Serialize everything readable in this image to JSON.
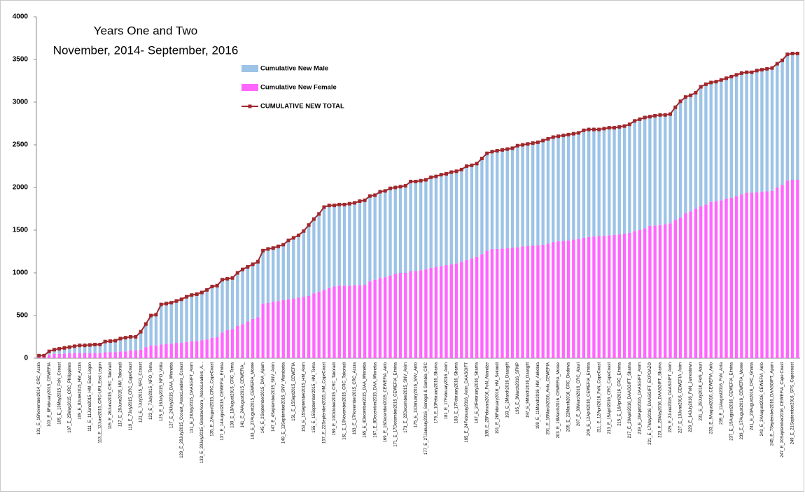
{
  "chart_data": {
    "type": "bar",
    "title": "Years  One and Two",
    "subtitle": "November, 2014- September, 2016",
    "categories": [
      "101_E_16November2014_CRC_Accra",
      null,
      "103_E_8February2015_CEWEFIA",
      null,
      "105_E_13May2015_FoN_Ccoast",
      null,
      "107_E_25May2015_CRC_Philippines",
      null,
      "109_E_8June2015_HM_Accra",
      null,
      "111_E_11June2015_HM_East Legon",
      null,
      "113_E_12June2015_CRC-URI_East Legon",
      null,
      "115_E_26June2015_CRC_Takoradi",
      null,
      "117_E_29June2015_HM_Takoradi",
      null,
      "119_E_7July2015_CRC_CapeCoast",
      null,
      "121_E_7July2015_NFO_Ccoast",
      null,
      "123_E_7July2015_NFO_Tema",
      null,
      "125_E_16July2015_NFO_Volta",
      null,
      "127_E_24July2015_DAA_Winneba",
      null,
      "129_E_28July2015_Ccoast_AssocLeaders_Ccoast",
      null,
      "131_E_28July2015_DAASGIFT_Axim",
      null,
      "133_E_29July2015_GreaterAccra_AssocLeaders_A...",
      null,
      "135_E_2August2015_CRC_CapeCoast",
      null,
      "137_E_14August2015_CEWEFIA_Elmina",
      null,
      "139_E_18August2015_CRC_Tema",
      null,
      "141_E_24August2015_CEWEFIA_",
      null,
      "143_E_27August2015_CEWEFIA_Moree",
      null,
      "145_E_2September2015_DAA_Apam",
      null,
      "147_E_4September2015_SNV_Axim",
      null,
      "149_E_11September2015_SNV_Warabeba",
      null,
      "151_E_15Sept2015_CEWEFIA",
      null,
      "153_E_15September2015_HM_Axim",
      null,
      "155_E_15September2015_HM_Tema",
      null,
      "157_E_22September2015_HM_CapeCoast",
      null,
      "159_E_19October2015_CRC_Takoradi",
      null,
      "161_E_10November2015_CRC_Takoradi",
      null,
      "163_E_17November2015_CRC_Accra",
      null,
      "165_E_4December2015_DAA_Winneba",
      null,
      "167_E_8December2015_DAA_Winneba",
      null,
      "169_E_16December2015_CEWEFIA_Anlo",
      null,
      "171_E_17December2015_CEWEFIA_Elmina",
      null,
      "173_E_22December2015_SNV_Axim",
      null,
      "175_E_13January2016_SNV_Anlo",
      null,
      "177_E_27January2016_Senegal & Gambia_CRC",
      null,
      "179_E_10February2016_Shama",
      null,
      "181_E_17February2016_Axim",
      null,
      "183_E_17February2016_Shama",
      null,
      "185_E_24February2016_Axim_DAASGIFT",
      null,
      "187_E_24February2016_Shama",
      null,
      "189_E_25February2016_FoN_Abandze",
      null,
      "191_E_26February2016_HM_Sekondi",
      null,
      "193_E_2March2016_Daasgift",
      null,
      "195_E_3March2016_SFMP",
      null,
      "197_E_9March2016_Daasgift",
      null,
      "199_E_11March2016_HM_Ankobra",
      null,
      "201_E_16March2016_Anlo_CEWEFIA",
      null,
      "203_E_18March2016_CEWEFIA_Moree",
      null,
      "205_E_22March2016_CRC_Dodowa",
      null,
      "207_E_30March2016_CRC_Aburi",
      null,
      "209_E_12April2016_CEWEFIA_Elmina",
      null,
      "211_E_12April2016_FoN_CapeCoast",
      null,
      "213_E_15April2016_CRC_CapeCoast",
      null,
      "215_E_16April2016_CRC_Elmina",
      null,
      "217_E_20April2016_DAASGIFT_Shama",
      null,
      "219_E_28April2016_DAASGIFT_Axim",
      null,
      "221_E_17May2016_DAASGIFT_EXPOAZO",
      null,
      "223_E_25May2016_DAASGIFT_Shama",
      null,
      "225_E_2June2016_DAASGIFT_Axim",
      null,
      "227_E_10June2016_CEWEFIA_Axim",
      null,
      "229_E_14July2016_FoN_Jamestown",
      null,
      "231_E_29July2016_FoN_Aburi",
      null,
      "233_E_9August2016_CEWEFIA_Anlo",
      null,
      "235_E_11August2016_FoN_Axta",
      null,
      "237_E_15August2016_CEWEFIA_Elmina",
      null,
      "239_E_17August2016_CEWEFIA_Moree",
      null,
      "241_E_23August2016_CRC_Ghana",
      null,
      "243_E_24August2016_CEWEFIA_Anlo",
      null,
      "245_E_7September2016_DAASGIFT_Apam",
      null,
      "247_E_20September2016_CEWEFIA_Cape Coast",
      null,
      "249_E_21September2016_SPS_Capecoast",
      null
    ],
    "series": [
      {
        "name": "Cumulative New Male",
        "kind": "bar",
        "color": "#9dc3e6",
        "values": [
          10,
          10,
          40,
          50,
          60,
          65,
          70,
          80,
          90,
          90,
          95,
          100,
          100,
          125,
          130,
          135,
          150,
          160,
          160,
          160,
          210,
          270,
          350,
          360,
          470,
          470,
          480,
          490,
          510,
          530,
          540,
          550,
          560,
          580,
          600,
          600,
          620,
          600,
          600,
          620,
          640,
          640,
          640,
          650,
          620,
          630,
          630,
          640,
          650,
          690,
          710,
          730,
          770,
          830,
          870,
          910,
          970,
          970,
          950,
          950,
          950,
          960,
          965,
          985,
          990,
          1000,
          990,
          1010,
          1010,
          1020,
          1010,
          1010,
          1020,
          1050,
          1050,
          1050,
          1050,
          1060,
          1060,
          1070,
          1070,
          1080,
          1080,
          1080,
          1100,
          1090,
          1090,
          1120,
          1140,
          1140,
          1150,
          1155,
          1160,
          1165,
          1190,
          1190,
          1195,
          1200,
          1205,
          1220,
          1230,
          1230,
          1230,
          1235,
          1240,
          1240,
          1240,
          1260,
          1260,
          1255,
          1250,
          1255,
          1260,
          1255,
          1260,
          1260,
          1270,
          1290,
          1300,
          1300,
          1280,
          1285,
          1290,
          1280,
          1280,
          1320,
          1360,
          1360,
          1360,
          1360,
          1400,
          1410,
          1400,
          1400,
          1410,
          1410,
          1420,
          1420,
          1420,
          1410,
          1410,
          1425,
          1430,
          1435,
          1440,
          1450,
          1460,
          1480,
          1480,
          1480
        ]
      },
      {
        "name": "Cumulative New Female",
        "kind": "bar",
        "color": "#ff66ff",
        "values": [
          20,
          20,
          40,
          50,
          50,
          55,
          60,
          60,
          60,
          60,
          60,
          60,
          60,
          70,
          70,
          70,
          80,
          80,
          90,
          90,
          100,
          130,
          150,
          150,
          160,
          170,
          170,
          180,
          180,
          190,
          200,
          200,
          210,
          220,
          240,
          250,
          300,
          330,
          340,
          380,
          400,
          430,
          460,
          480,
          640,
          650,
          660,
          670,
          680,
          690,
          700,
          710,
          720,
          730,
          760,
          780,
          800,
          820,
          840,
          850,
          850,
          850,
          855,
          855,
          860,
          900,
          920,
          940,
          950,
          970,
          990,
          1000,
          1000,
          1020,
          1020,
          1030,
          1040,
          1060,
          1070,
          1080,
          1090,
          1100,
          1110,
          1130,
          1150,
          1170,
          1190,
          1220,
          1260,
          1280,
          1280,
          1285,
          1290,
          1295,
          1300,
          1310,
          1315,
          1320,
          1325,
          1330,
          1340,
          1360,
          1370,
          1375,
          1380,
          1390,
          1400,
          1410,
          1420,
          1425,
          1430,
          1435,
          1440,
          1445,
          1450,
          1460,
          1470,
          1490,
          1500,
          1520,
          1550,
          1555,
          1560,
          1570,
          1580,
          1620,
          1650,
          1700,
          1720,
          1750,
          1780,
          1800,
          1830,
          1840,
          1850,
          1870,
          1880,
          1900,
          1920,
          1940,
          1940,
          1945,
          1950,
          1955,
          1960,
          2000,
          2030,
          2080,
          2090,
          2090
        ]
      },
      {
        "name": "CUMULATIVE NEW TOTAL",
        "kind": "line",
        "color": "#a0282d",
        "values": [
          30,
          30,
          80,
          100,
          110,
          120,
          130,
          140,
          150,
          150,
          155,
          160,
          160,
          195,
          200,
          205,
          230,
          240,
          250,
          250,
          310,
          400,
          500,
          510,
          630,
          640,
          650,
          670,
          690,
          720,
          740,
          750,
          770,
          800,
          840,
          850,
          920,
          930,
          940,
          1000,
          1040,
          1070,
          1100,
          1130,
          1260,
          1280,
          1290,
          1310,
          1330,
          1380,
          1410,
          1440,
          1490,
          1560,
          1630,
          1690,
          1770,
          1790,
          1790,
          1800,
          1800,
          1810,
          1820,
          1840,
          1850,
          1900,
          1910,
          1950,
          1960,
          1990,
          2000,
          2010,
          2020,
          2070,
          2070,
          2080,
          2090,
          2120,
          2130,
          2150,
          2160,
          2180,
          2190,
          2210,
          2250,
          2260,
          2280,
          2340,
          2400,
          2420,
          2430,
          2440,
          2450,
          2460,
          2490,
          2500,
          2510,
          2520,
          2530,
          2550,
          2570,
          2590,
          2600,
          2610,
          2620,
          2630,
          2640,
          2670,
          2680,
          2680,
          2680,
          2690,
          2700,
          2700,
          2710,
          2720,
          2740,
          2780,
          2800,
          2820,
          2830,
          2840,
          2850,
          2850,
          2860,
          2940,
          3010,
          3060,
          3080,
          3110,
          3180,
          3210,
          3230,
          3240,
          3260,
          3280,
          3300,
          3320,
          3340,
          3350,
          3350,
          3370,
          3380,
          3390,
          3400,
          3450,
          3490,
          3560,
          3570,
          3570
        ]
      }
    ],
    "ylim": [
      0,
      4000
    ],
    "yticks": [
      0,
      500,
      1000,
      1500,
      2000,
      2500,
      3000,
      3500,
      4000
    ],
    "grid": false
  }
}
